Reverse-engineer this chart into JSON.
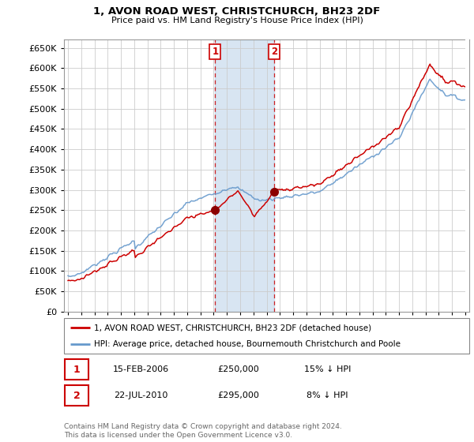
{
  "title": "1, AVON ROAD WEST, CHRISTCHURCH, BH23 2DF",
  "subtitle": "Price paid vs. HM Land Registry's House Price Index (HPI)",
  "legend_line1": "1, AVON ROAD WEST, CHRISTCHURCH, BH23 2DF (detached house)",
  "legend_line2": "HPI: Average price, detached house, Bournemouth Christchurch and Poole",
  "footnote": "Contains HM Land Registry data © Crown copyright and database right 2024.\nThis data is licensed under the Open Government Licence v3.0.",
  "sale1_date_str": "15-FEB-2006",
  "sale1_price_str": "£250,000",
  "sale1_hpi_str": "15% ↓ HPI",
  "sale2_date_str": "22-JUL-2010",
  "sale2_price_str": "£295,000",
  "sale2_hpi_str": "8% ↓ HPI",
  "hpi_color": "#6699cc",
  "sale_color": "#cc0000",
  "marker_color": "#8b0000",
  "vline_color": "#cc0000",
  "shade_color": "#ddeeff",
  "background_color": "#ffffff",
  "grid_color": "#cccccc",
  "ylim": [
    0,
    670000
  ],
  "ytick_vals": [
    0,
    50000,
    100000,
    150000,
    200000,
    250000,
    300000,
    350000,
    400000,
    450000,
    500000,
    550000,
    600000,
    650000
  ],
  "sale1_x": 2006.12,
  "sale1_y": 250000,
  "sale2_x": 2010.55,
  "sale2_y": 295000,
  "xmin": 1994.7,
  "xmax": 2025.3
}
